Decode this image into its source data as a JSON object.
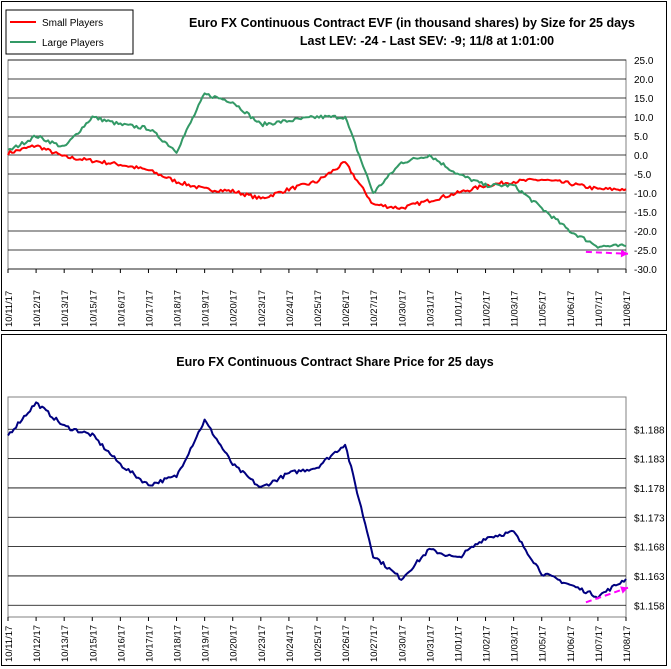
{
  "chart_data": [
    {
      "type": "line",
      "title": "Euro FX Continuous Contract EVF (in thousand shares) by Size for 25 days",
      "subtitle": "Last LEV: -24 - Last SEV: -9; 11/8 at 1:01:00",
      "ylim": [
        -30,
        25
      ],
      "yticks": [
        "25.0",
        "20.0",
        "15.0",
        "10.0",
        "5.0",
        "0.0",
        "-5.0",
        "-10.0",
        "-15.0",
        "-20.0",
        "-25.0",
        "-30.0"
      ],
      "grid": true,
      "legend_position": "top-left",
      "x": [
        "10/11/17",
        "10/12/17",
        "10/13/17",
        "10/15/17",
        "10/16/17",
        "10/17/17",
        "10/18/17",
        "10/19/17",
        "10/20/17",
        "10/23/17",
        "10/24/17",
        "10/25/17",
        "10/26/17",
        "10/27/17",
        "10/30/17",
        "10/31/17",
        "11/01/17",
        "11/02/17",
        "11/03/17",
        "11/05/17",
        "11/06/17",
        "11/07/17",
        "11/08/17"
      ],
      "series": [
        {
          "name": "Small Players",
          "color": "#ff0000",
          "values": [
            0.5,
            2.5,
            -0.5,
            -1.5,
            -2.5,
            -4,
            -7,
            -9,
            -9.5,
            -11.5,
            -9,
            -7,
            -2,
            -13,
            -14,
            -12,
            -10,
            -8,
            -7,
            -6.5,
            -7.5,
            -9,
            -9
          ]
        },
        {
          "name": "Large Players",
          "color": "#339966",
          "values": [
            1,
            5,
            2,
            10,
            8,
            7,
            1,
            16,
            14,
            8,
            9,
            10,
            10,
            -10,
            -2,
            0,
            -5,
            -8,
            -8,
            -14,
            -20,
            -24,
            -24
          ]
        }
      ],
      "annotation_arrow": {
        "color": "#ff00ff",
        "from": [
          "11/07/17",
          -25.5
        ],
        "to": [
          "11/08/17",
          -26
        ]
      }
    },
    {
      "type": "line",
      "title": "Euro FX Continuous Contract Share Price for 25 days",
      "ylim": [
        1.156,
        1.1935
      ],
      "yticks": [
        "$1.188",
        "$1.183",
        "$1.178",
        "$1.173",
        "$1.168",
        "$1.163",
        "$1.158"
      ],
      "ytick_values": [
        1.188,
        1.183,
        1.178,
        1.173,
        1.168,
        1.163,
        1.158
      ],
      "grid": true,
      "x": [
        "10/11/17",
        "10/12/17",
        "10/13/17",
        "10/15/17",
        "10/16/17",
        "10/17/17",
        "10/18/17",
        "10/19/17",
        "10/20/17",
        "10/23/17",
        "10/24/17",
        "10/25/17",
        "10/26/17",
        "10/27/17",
        "10/30/17",
        "10/31/17",
        "11/01/17",
        "11/02/17",
        "11/03/17",
        "11/05/17",
        "11/06/17",
        "11/07/17",
        "11/08/17"
      ],
      "series": [
        {
          "color": "#000080",
          "values": [
            1.187,
            1.1925,
            1.1885,
            1.187,
            1.182,
            1.1785,
            1.18,
            1.1895,
            1.182,
            1.178,
            1.1805,
            1.1815,
            1.1855,
            1.1665,
            1.1625,
            1.1675,
            1.166,
            1.1695,
            1.1705,
            1.1635,
            1.1615,
            1.1595,
            1.1625
          ]
        }
      ],
      "annotation_arrow": {
        "color": "#ff00ff",
        "from": [
          "11/07/17",
          1.1585
        ],
        "to": [
          "11/08/17",
          1.161
        ]
      }
    }
  ]
}
